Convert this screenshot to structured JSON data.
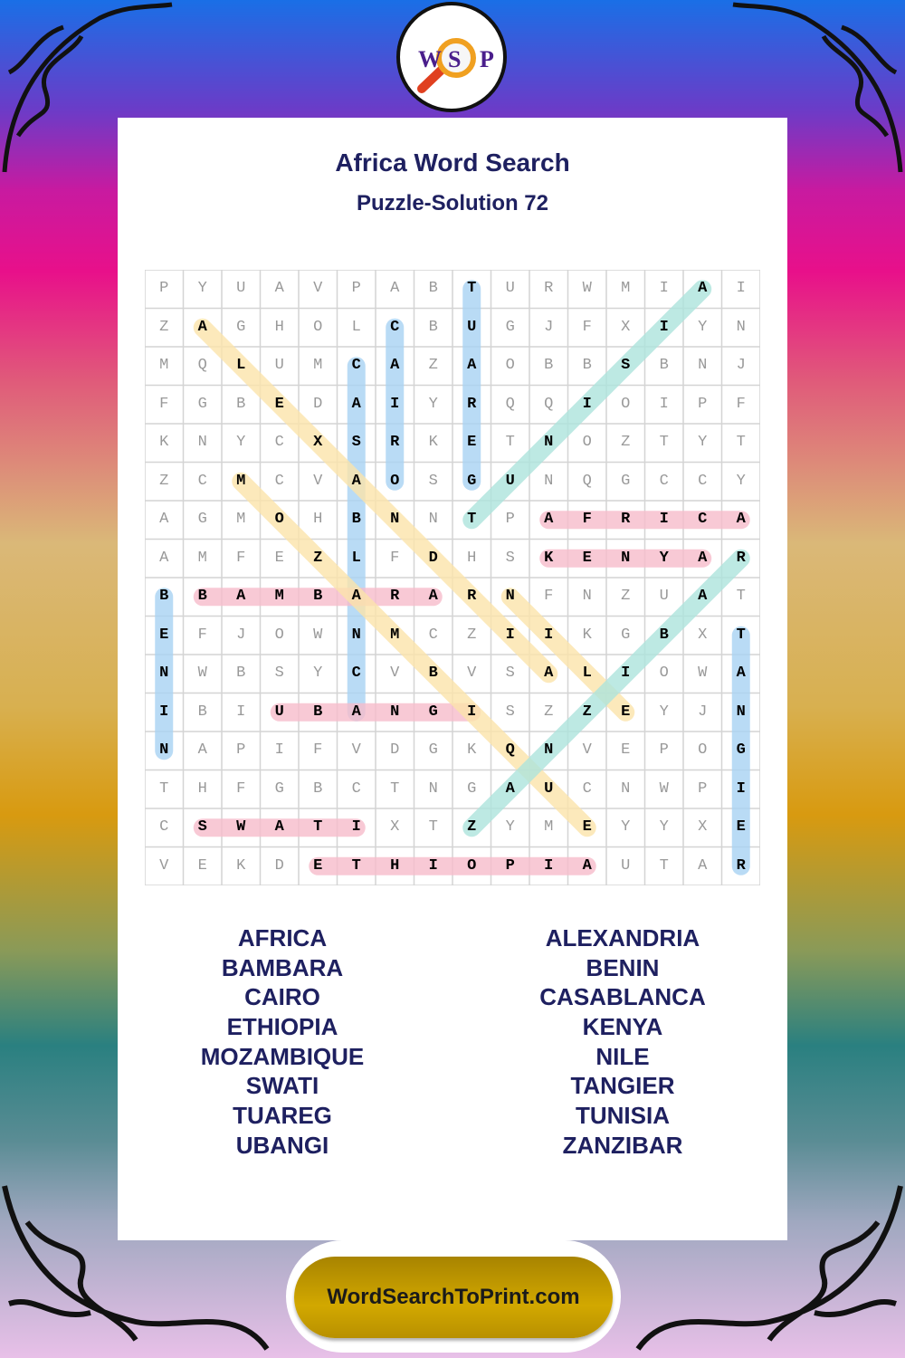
{
  "logo": {
    "letters": [
      "W",
      "S",
      "P"
    ],
    "icon": "magnifying-glass-icon"
  },
  "header": {
    "title": "Africa Word Search",
    "subtitle": "Puzzle-Solution 72"
  },
  "grid": {
    "rows": [
      "PYUAVPABTURWMIAI",
      "ZAGHOLCBUGJFXIYN",
      "MQLUMCAZAOBBSBNJ",
      "FGBEDAIYRQQIOIPF",
      "KNYCXSRKETNOZTYT",
      "ZCMCVAOSGUNQGCCY",
      "AGMOHBNNTPAFRICA",
      "AMFEZLFDHSKENYAR",
      "BBAMBARARNFNZUAT",
      "EFJOWNMCZIIKGBXT",
      "NWBSYCVBVSALIOWA",
      "IBIUBANGISZZEYJN",
      "NAPIFVDGKQNVEPOG",
      "THFGBCTNGAUCNWPI",
      "CSWATIXTZYMEYYXE",
      "VEKDETHIOPIAUTAR"
    ],
    "solutions": [
      {
        "word": "TUAREG",
        "start": [
          1,
          9
        ],
        "end": [
          6,
          9
        ],
        "color": "#a8d2f2"
      },
      {
        "word": "CAIRO",
        "start": [
          2,
          7
        ],
        "end": [
          6,
          7
        ],
        "color": "#a8d2f2"
      },
      {
        "word": "CASABLANCA",
        "start": [
          3,
          6
        ],
        "end": [
          12,
          6
        ],
        "color": "#a8d2f2"
      },
      {
        "word": "BENIN",
        "start": [
          9,
          1
        ],
        "end": [
          13,
          1
        ],
        "color": "#a8d2f2"
      },
      {
        "word": "TANGIER",
        "start": [
          10,
          16
        ],
        "end": [
          16,
          16
        ],
        "color": "#a8d2f2"
      },
      {
        "word": "AFRICA",
        "start": [
          7,
          11
        ],
        "end": [
          7,
          16
        ],
        "color": "#f6bccb"
      },
      {
        "word": "KENYA",
        "start": [
          8,
          11
        ],
        "end": [
          8,
          15
        ],
        "color": "#f6bccb"
      },
      {
        "word": "BAMBARA",
        "start": [
          9,
          2
        ],
        "end": [
          9,
          8
        ],
        "color": "#f6bccb"
      },
      {
        "word": "UBANGI",
        "start": [
          12,
          4
        ],
        "end": [
          12,
          9
        ],
        "color": "#f6bccb"
      },
      {
        "word": "SWATI",
        "start": [
          15,
          2
        ],
        "end": [
          15,
          6
        ],
        "color": "#f6bccb"
      },
      {
        "word": "ETHIOPIA",
        "start": [
          16,
          5
        ],
        "end": [
          16,
          12
        ],
        "color": "#f6bccb"
      },
      {
        "word": "ALEXANDRIA",
        "start": [
          2,
          2
        ],
        "end": [
          11,
          11
        ],
        "color": "#fbe4aa"
      },
      {
        "word": "MOZAMBIQUE",
        "start": [
          6,
          3
        ],
        "end": [
          15,
          12
        ],
        "color": "#fbe4aa"
      },
      {
        "word": "NILE",
        "start": [
          9,
          10
        ],
        "end": [
          12,
          13
        ],
        "color": "#fbe4aa"
      },
      {
        "word": "TUNISIA",
        "start": [
          7,
          9
        ],
        "end": [
          1,
          15
        ],
        "color": "#acE4dc"
      },
      {
        "word": "ZANZIBAR",
        "start": [
          15,
          9
        ],
        "end": [
          8,
          16
        ],
        "color": "#acE4dc"
      }
    ]
  },
  "word_list": {
    "left": [
      "AFRICA",
      "BAMBARA",
      "CAIRO",
      "ETHIOPIA",
      "MOZAMBIQUE",
      "SWATI",
      "TUAREG",
      "UBANGI"
    ],
    "right": [
      "ALEXANDRIA",
      "BENIN",
      "CASABLANCA",
      "KENYA",
      "NILE",
      "TANGIER",
      "TUNISIA",
      "ZANZIBAR"
    ]
  },
  "footer": {
    "site": "WordSearchToPrint.com"
  }
}
